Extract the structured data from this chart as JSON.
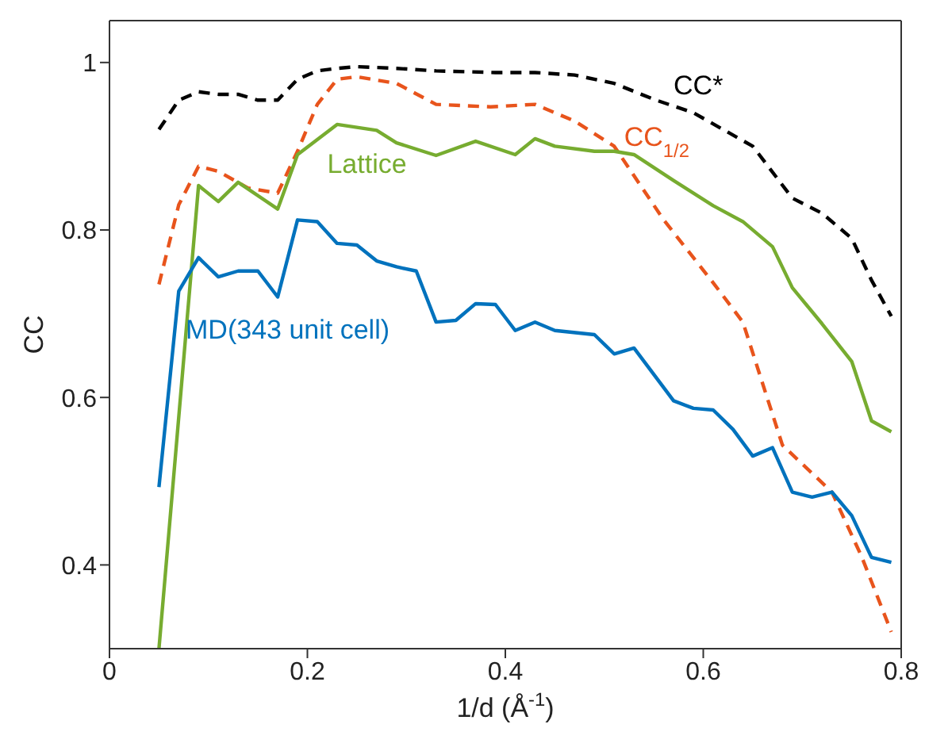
{
  "chart_data": {
    "type": "line",
    "xlabel": "1/d (Å$^{-1}$)",
    "ylabel": "CC",
    "xlim": [
      0,
      0.8
    ],
    "ylim": [
      0.3,
      1.05
    ],
    "xticks": [
      0,
      0.2,
      0.4,
      0.6,
      0.8
    ],
    "yticks": [
      0.4,
      0.6,
      0.8,
      1
    ],
    "marker": "none",
    "series": [
      {
        "name": "CC*",
        "color": "#000000",
        "line_style": "dashed",
        "x": [
          0.05,
          0.07,
          0.09,
          0.11,
          0.13,
          0.15,
          0.17,
          0.19,
          0.21,
          0.23,
          0.25,
          0.29,
          0.33,
          0.39,
          0.43,
          0.47,
          0.51,
          0.55,
          0.59,
          0.62,
          0.65,
          0.69,
          0.72,
          0.75,
          0.77,
          0.79
        ],
        "values": [
          0.92,
          0.955,
          0.965,
          0.962,
          0.962,
          0.955,
          0.955,
          0.98,
          0.99,
          0.993,
          0.995,
          0.993,
          0.99,
          0.988,
          0.988,
          0.985,
          0.975,
          0.956,
          0.94,
          0.92,
          0.9,
          0.838,
          0.82,
          0.79,
          0.74,
          0.697
        ]
      },
      {
        "name": "CC$_{1/2}$",
        "color": "#e8541c",
        "line_style": "dashed",
        "x": [
          0.05,
          0.07,
          0.09,
          0.11,
          0.14,
          0.17,
          0.19,
          0.21,
          0.23,
          0.25,
          0.29,
          0.33,
          0.385,
          0.43,
          0.47,
          0.51,
          0.56,
          0.61,
          0.64,
          0.68,
          0.73,
          0.76,
          0.79
        ],
        "values": [
          0.735,
          0.83,
          0.876,
          0.87,
          0.85,
          0.844,
          0.894,
          0.95,
          0.98,
          0.983,
          0.975,
          0.95,
          0.947,
          0.95,
          0.93,
          0.9,
          0.812,
          0.737,
          0.69,
          0.543,
          0.487,
          0.41,
          0.32
        ]
      },
      {
        "name": "Lattice",
        "color": "#77ac30",
        "line_style": "solid",
        "x": [
          0.05,
          0.09,
          0.11,
          0.13,
          0.17,
          0.19,
          0.23,
          0.27,
          0.29,
          0.33,
          0.37,
          0.41,
          0.43,
          0.45,
          0.49,
          0.51,
          0.53,
          0.57,
          0.61,
          0.64,
          0.67,
          0.69,
          0.72,
          0.75,
          0.77,
          0.79
        ],
        "values": [
          0.3,
          0.853,
          0.834,
          0.857,
          0.825,
          0.89,
          0.926,
          0.919,
          0.904,
          0.889,
          0.906,
          0.89,
          0.909,
          0.9,
          0.894,
          0.894,
          0.89,
          0.859,
          0.829,
          0.81,
          0.78,
          0.731,
          0.688,
          0.643,
          0.572,
          0.559
        ]
      },
      {
        "name": "MD(343 unit cell)",
        "color": "#0072bd",
        "line_style": "solid",
        "x": [
          0.05,
          0.07,
          0.09,
          0.11,
          0.13,
          0.15,
          0.17,
          0.19,
          0.21,
          0.23,
          0.25,
          0.27,
          0.29,
          0.31,
          0.33,
          0.35,
          0.37,
          0.39,
          0.41,
          0.43,
          0.45,
          0.49,
          0.51,
          0.53,
          0.57,
          0.59,
          0.61,
          0.63,
          0.65,
          0.67,
          0.69,
          0.71,
          0.73,
          0.75,
          0.77,
          0.79
        ],
        "values": [
          0.493,
          0.727,
          0.767,
          0.744,
          0.751,
          0.751,
          0.72,
          0.812,
          0.81,
          0.784,
          0.782,
          0.763,
          0.756,
          0.751,
          0.69,
          0.692,
          0.712,
          0.711,
          0.68,
          0.69,
          0.68,
          0.675,
          0.652,
          0.659,
          0.596,
          0.587,
          0.585,
          0.562,
          0.53,
          0.54,
          0.487,
          0.481,
          0.487,
          0.459,
          0.409,
          0.403
        ]
      }
    ]
  }
}
